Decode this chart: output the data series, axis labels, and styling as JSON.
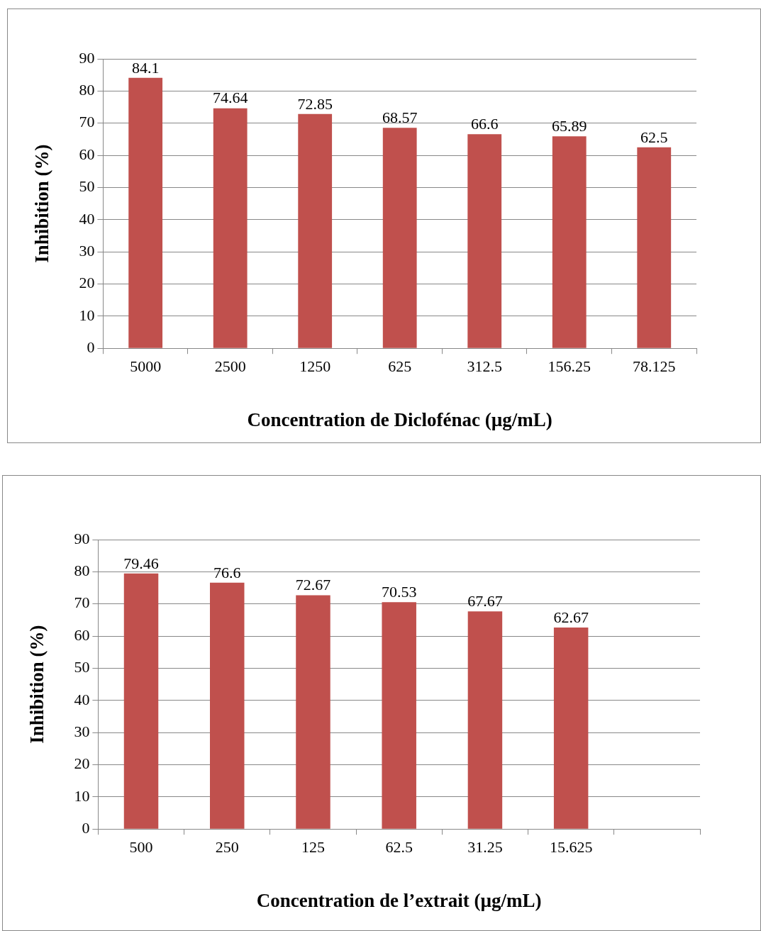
{
  "chart_data": [
    {
      "type": "bar",
      "categories": [
        "5000",
        "2500",
        "1250",
        "625",
        "312.5",
        "156.25",
        "78.125"
      ],
      "values": [
        84.1,
        74.64,
        72.85,
        68.57,
        66.6,
        65.89,
        62.5
      ],
      "color": "#c0504d",
      "xlabel": "Concentration de Diclofénac (µg/mL)",
      "ylabel": "Inhibition (%)",
      "ylim": [
        0,
        90
      ],
      "yticks": [
        0,
        10,
        20,
        30,
        40,
        50,
        60,
        70,
        80,
        90
      ],
      "grid": "y",
      "data_labels": true,
      "legend": false
    },
    {
      "type": "bar",
      "categories": [
        "500",
        "250",
        "125",
        "62.5",
        "31.25",
        "15.625",
        null
      ],
      "values": [
        79.46,
        76.6,
        72.67,
        70.53,
        67.67,
        62.67,
        null
      ],
      "color": "#c0504d",
      "xlabel": "Concentration de l’extrait (µg/mL)",
      "ylabel": "Inhibition (%)",
      "ylim": [
        0,
        90
      ],
      "yticks": [
        0,
        10,
        20,
        30,
        40,
        50,
        60,
        70,
        80,
        90
      ],
      "grid": "y",
      "data_labels": true,
      "legend": false
    }
  ]
}
